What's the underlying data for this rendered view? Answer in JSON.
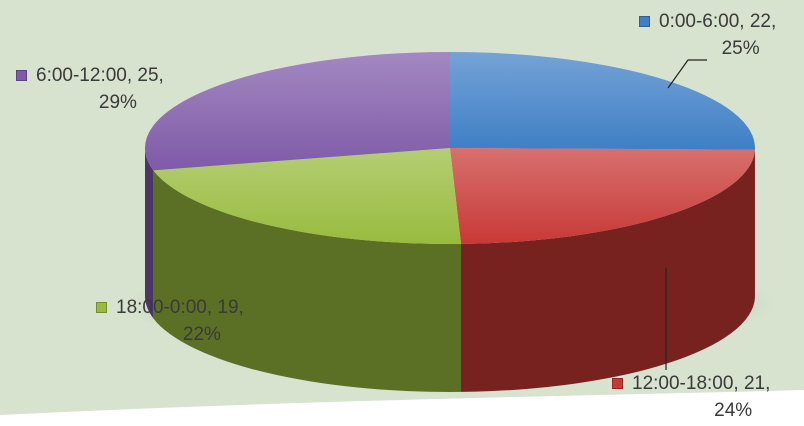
{
  "chart_data": {
    "type": "pie",
    "title": "",
    "three_d": true,
    "show_legend": false,
    "slices": [
      {
        "label": "0:00-6:00",
        "value": 22,
        "percent": "25%",
        "color": "#3f7fc6"
      },
      {
        "label": "12:00-18:00",
        "value": 21,
        "percent": "24%",
        "color": "#c83936"
      },
      {
        "label": "18:00-0:00",
        "value": 19,
        "percent": "22%",
        "color": "#98bb3e"
      },
      {
        "label": "6:00-12:00",
        "value": 25,
        "percent": "29%",
        "color": "#7f5aa8"
      }
    ],
    "data_labels": [
      {
        "line1": "0:00-6:00, 22,",
        "line2": "25%"
      },
      {
        "line1": "12:00-18:00, 21,",
        "line2": "24%"
      },
      {
        "line1": "18:00-0:00, 19,",
        "line2": "22%"
      },
      {
        "line1": "6:00-12:00, 25,",
        "line2": "29%"
      }
    ]
  },
  "background": {
    "color": "#d7e2cf",
    "accent": "#ffffff"
  }
}
